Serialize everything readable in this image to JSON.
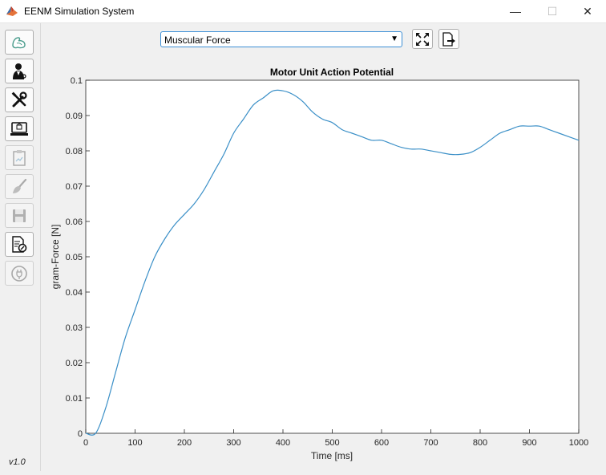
{
  "window": {
    "title": "EENM Simulation System",
    "minimize_glyph": "—",
    "maximize_glyph": "☐",
    "close_glyph": "✕"
  },
  "sidebar": {
    "buttons": [
      {
        "icon": "muscle-icon",
        "enabled": true
      },
      {
        "icon": "doctor-icon",
        "enabled": true
      },
      {
        "icon": "tools-icon",
        "enabled": true
      },
      {
        "icon": "laptop-icon",
        "enabled": true
      },
      {
        "icon": "clipboard-icon",
        "enabled": false
      },
      {
        "icon": "brush-icon",
        "enabled": false
      },
      {
        "icon": "save-icon",
        "enabled": false
      },
      {
        "icon": "document-search-icon",
        "enabled": true
      },
      {
        "icon": "plug-icon",
        "enabled": false
      }
    ],
    "version": "v1.0"
  },
  "toolbar": {
    "selected_view": "Muscular Force",
    "dropdown_arrow": "▼"
  },
  "colors": {
    "series": "#3a8fc7",
    "select_border": "#3c8fd6"
  },
  "chart_data": {
    "type": "line",
    "title": "Motor Unit Action Potential",
    "xlabel": "Time [ms]",
    "ylabel": "gram-Force [N]",
    "xlim": [
      0,
      1000
    ],
    "ylim": [
      0,
      0.1
    ],
    "xticks": [
      0,
      100,
      200,
      300,
      400,
      500,
      600,
      700,
      800,
      900,
      1000
    ],
    "yticks": [
      0,
      0.01,
      0.02,
      0.03,
      0.04,
      0.05,
      0.06,
      0.07,
      0.08,
      0.09,
      0.1
    ],
    "ytick_labels": [
      "0",
      "0.01",
      "0.02",
      "0.03",
      "0.04",
      "0.05",
      "0.06",
      "0.07",
      "0.08",
      "0.09",
      "0.1"
    ],
    "grid": false,
    "series": [
      {
        "x": [
          0,
          20,
          40,
          60,
          80,
          100,
          120,
          140,
          160,
          180,
          200,
          220,
          240,
          260,
          280,
          300,
          320,
          340,
          360,
          380,
          400,
          420,
          440,
          460,
          480,
          500,
          520,
          540,
          560,
          580,
          600,
          620,
          640,
          660,
          680,
          700,
          720,
          740,
          760,
          780,
          800,
          820,
          840,
          860,
          880,
          900,
          920,
          940,
          960,
          980,
          1000
        ],
        "y": [
          0,
          0,
          0.007,
          0.017,
          0.027,
          0.035,
          0.043,
          0.05,
          0.055,
          0.059,
          0.062,
          0.065,
          0.069,
          0.074,
          0.079,
          0.085,
          0.089,
          0.093,
          0.095,
          0.097,
          0.097,
          0.096,
          0.094,
          0.091,
          0.089,
          0.088,
          0.086,
          0.085,
          0.084,
          0.083,
          0.083,
          0.082,
          0.081,
          0.0805,
          0.0805,
          0.08,
          0.0795,
          0.079,
          0.079,
          0.0795,
          0.081,
          0.083,
          0.085,
          0.086,
          0.087,
          0.087,
          0.087,
          0.086,
          0.085,
          0.084,
          0.083
        ]
      }
    ]
  }
}
